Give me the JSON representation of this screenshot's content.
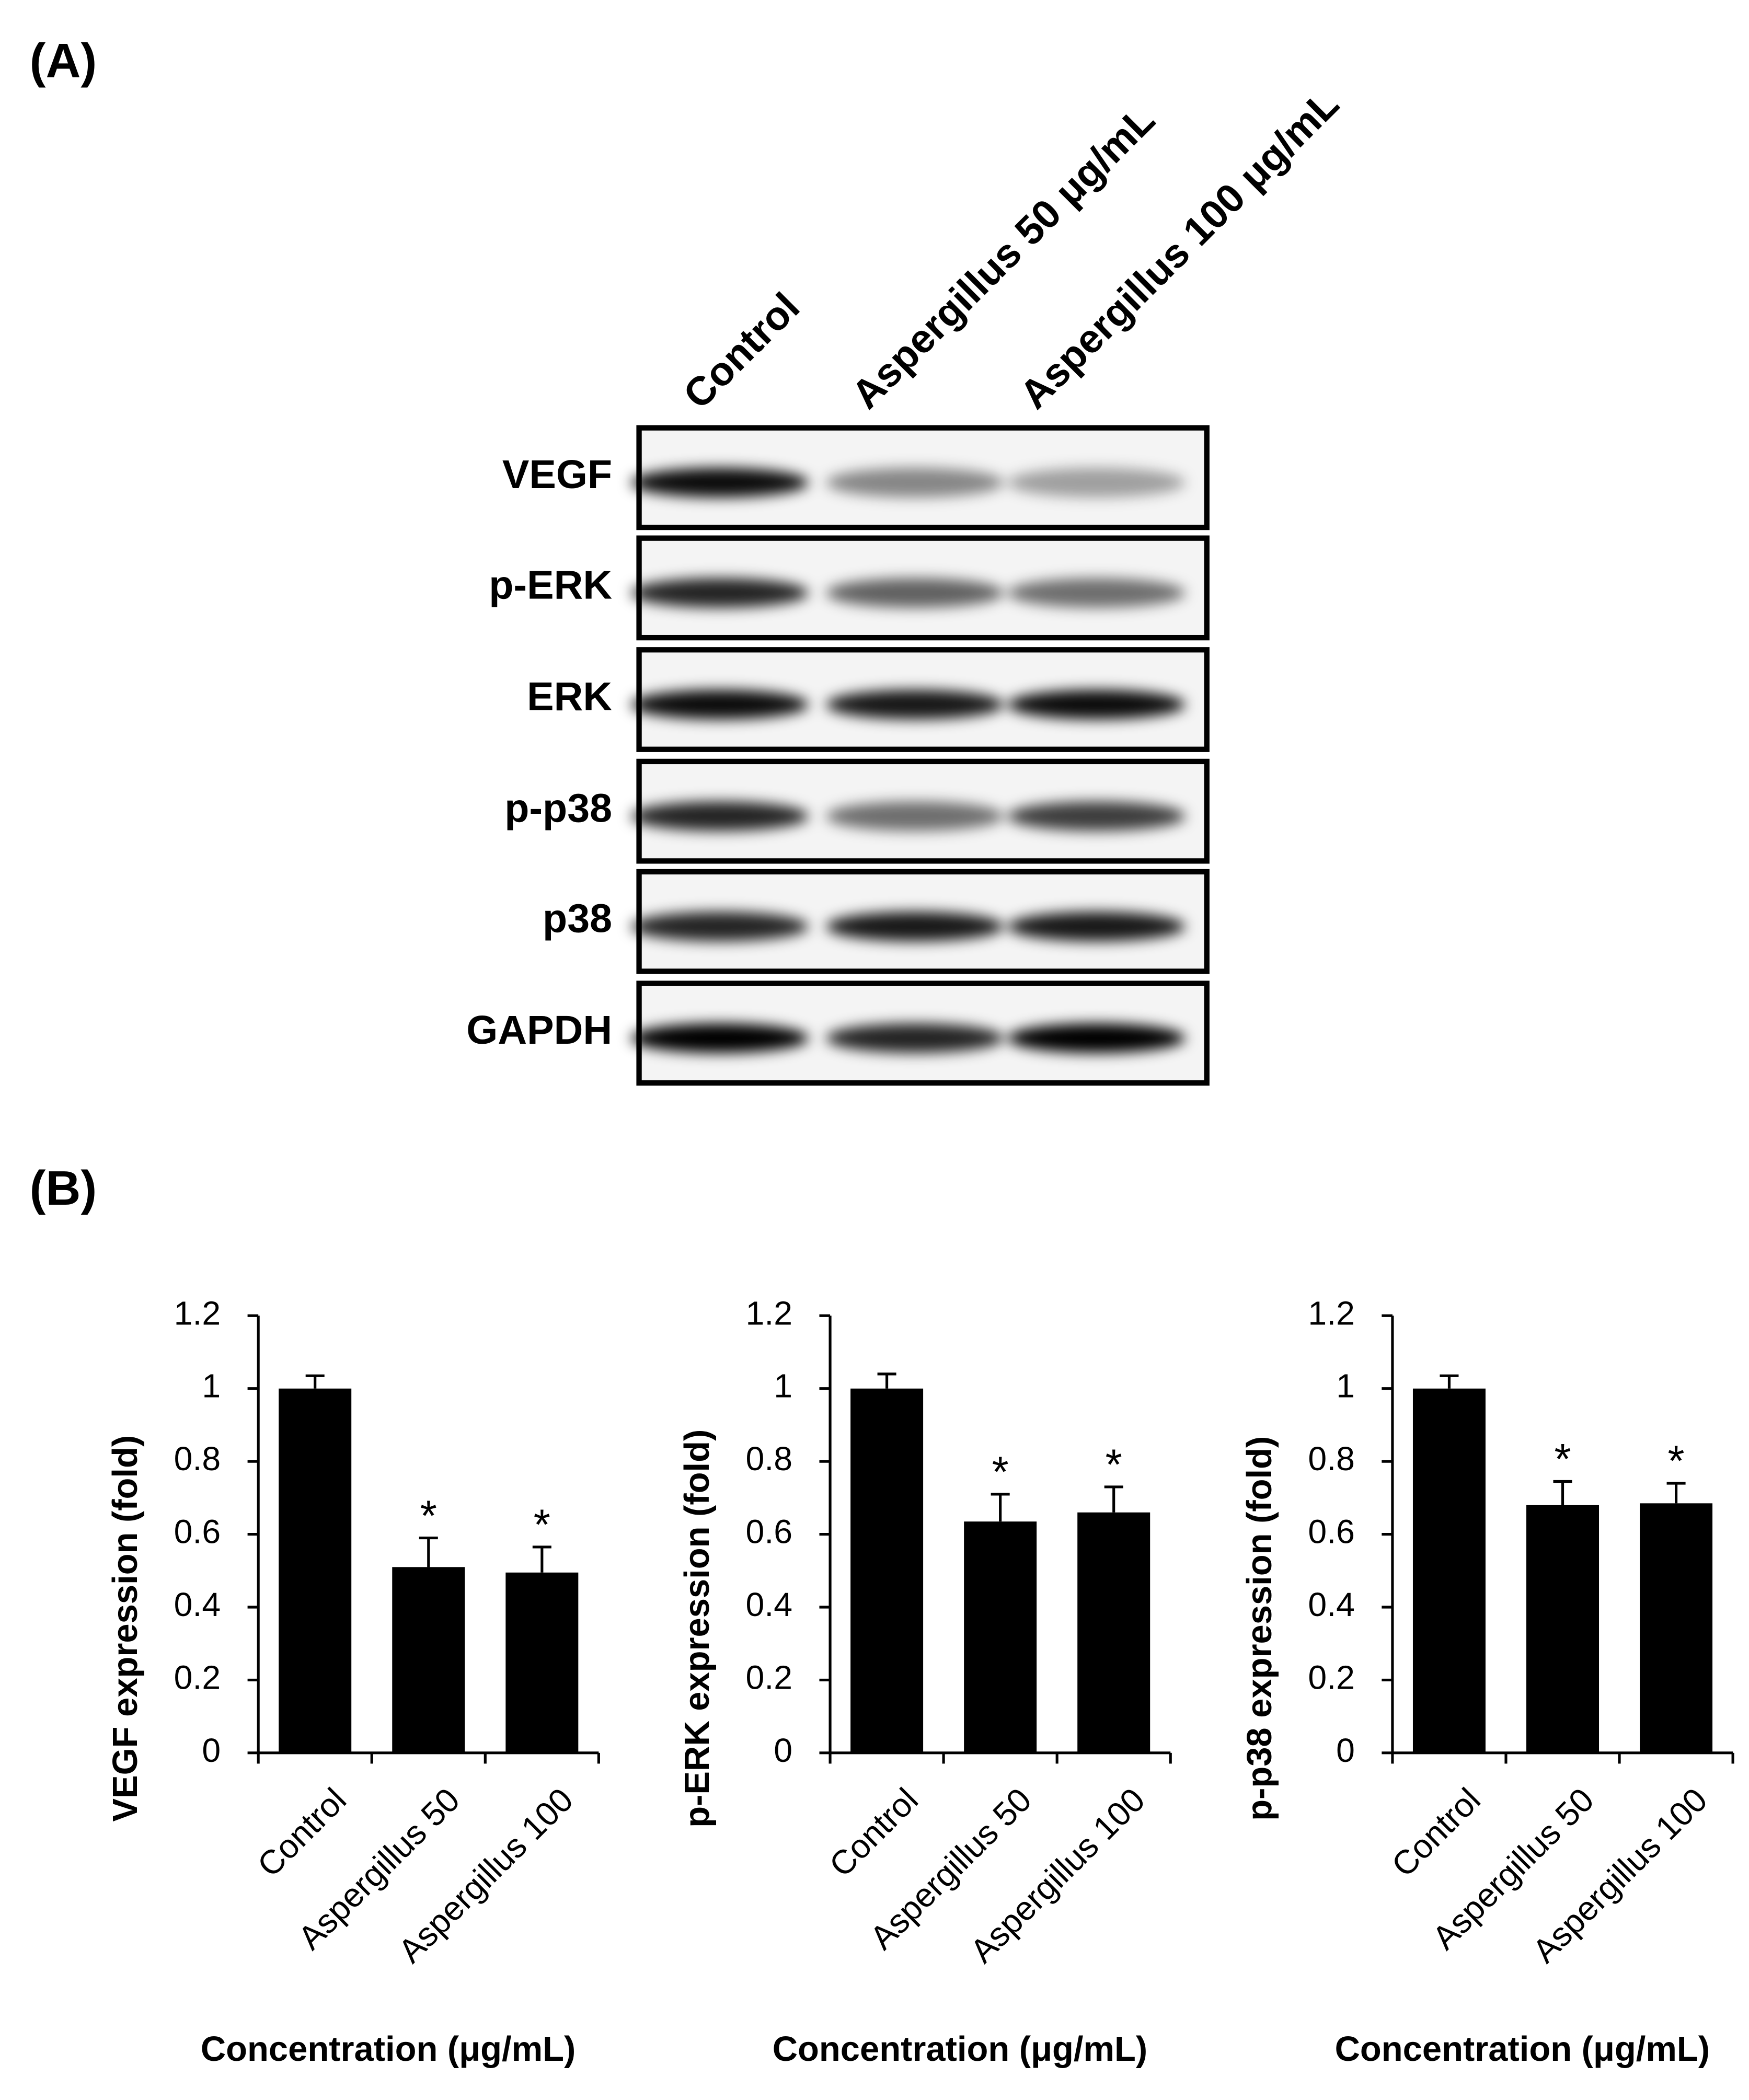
{
  "panels": [
    "(A)",
    "(B)"
  ],
  "blot": {
    "lanes": [
      "Control",
      "Aspergillus 50 μg/mL",
      "Aspergillus 100 μg/mL"
    ],
    "rows": [
      "VEGF",
      "p-ERK",
      "ERK",
      "p-p38",
      "p38",
      "GAPDH"
    ]
  },
  "chart_data": [
    {
      "type": "bar",
      "y_label": "VEGF expression (fold)",
      "x_label": "Concentration (μg/mL)",
      "categories": [
        "Control",
        "Aspergillus 50",
        "Aspergillus 100"
      ],
      "values": [
        1.0,
        0.51,
        0.495
      ],
      "errors": [
        0.035,
        0.08,
        0.07
      ],
      "significance": [
        null,
        "*",
        "*"
      ],
      "color": "#000000",
      "ylim": [
        0,
        1.2
      ],
      "yticks": [
        0,
        0.2,
        0.4,
        0.6,
        0.8,
        1,
        1.2
      ]
    },
    {
      "type": "bar",
      "y_label": "p-ERK expression (fold)",
      "x_label": "Concentration (μg/mL)",
      "categories": [
        "Control",
        "Aspergillus 50",
        "Aspergillus 100"
      ],
      "values": [
        1.0,
        0.635,
        0.66
      ],
      "errors": [
        0.04,
        0.075,
        0.07
      ],
      "significance": [
        null,
        "*",
        "*"
      ],
      "color": "#000000",
      "ylim": [
        0,
        1.2
      ],
      "yticks": [
        0,
        0.2,
        0.4,
        0.6,
        0.8,
        1,
        1.2
      ]
    },
    {
      "type": "bar",
      "y_label": "p-p38 expression (fold)",
      "x_label": "Concentration (μg/mL)",
      "categories": [
        "Control",
        "Aspergillus 50",
        "Aspergillus 100"
      ],
      "values": [
        1.0,
        0.68,
        0.685
      ],
      "errors": [
        0.035,
        0.065,
        0.055
      ],
      "significance": [
        null,
        "*",
        "*"
      ],
      "color": "#000000",
      "ylim": [
        0,
        1.2
      ],
      "yticks": [
        0,
        0.2,
        0.4,
        0.6,
        0.8,
        1,
        1.2
      ]
    }
  ]
}
